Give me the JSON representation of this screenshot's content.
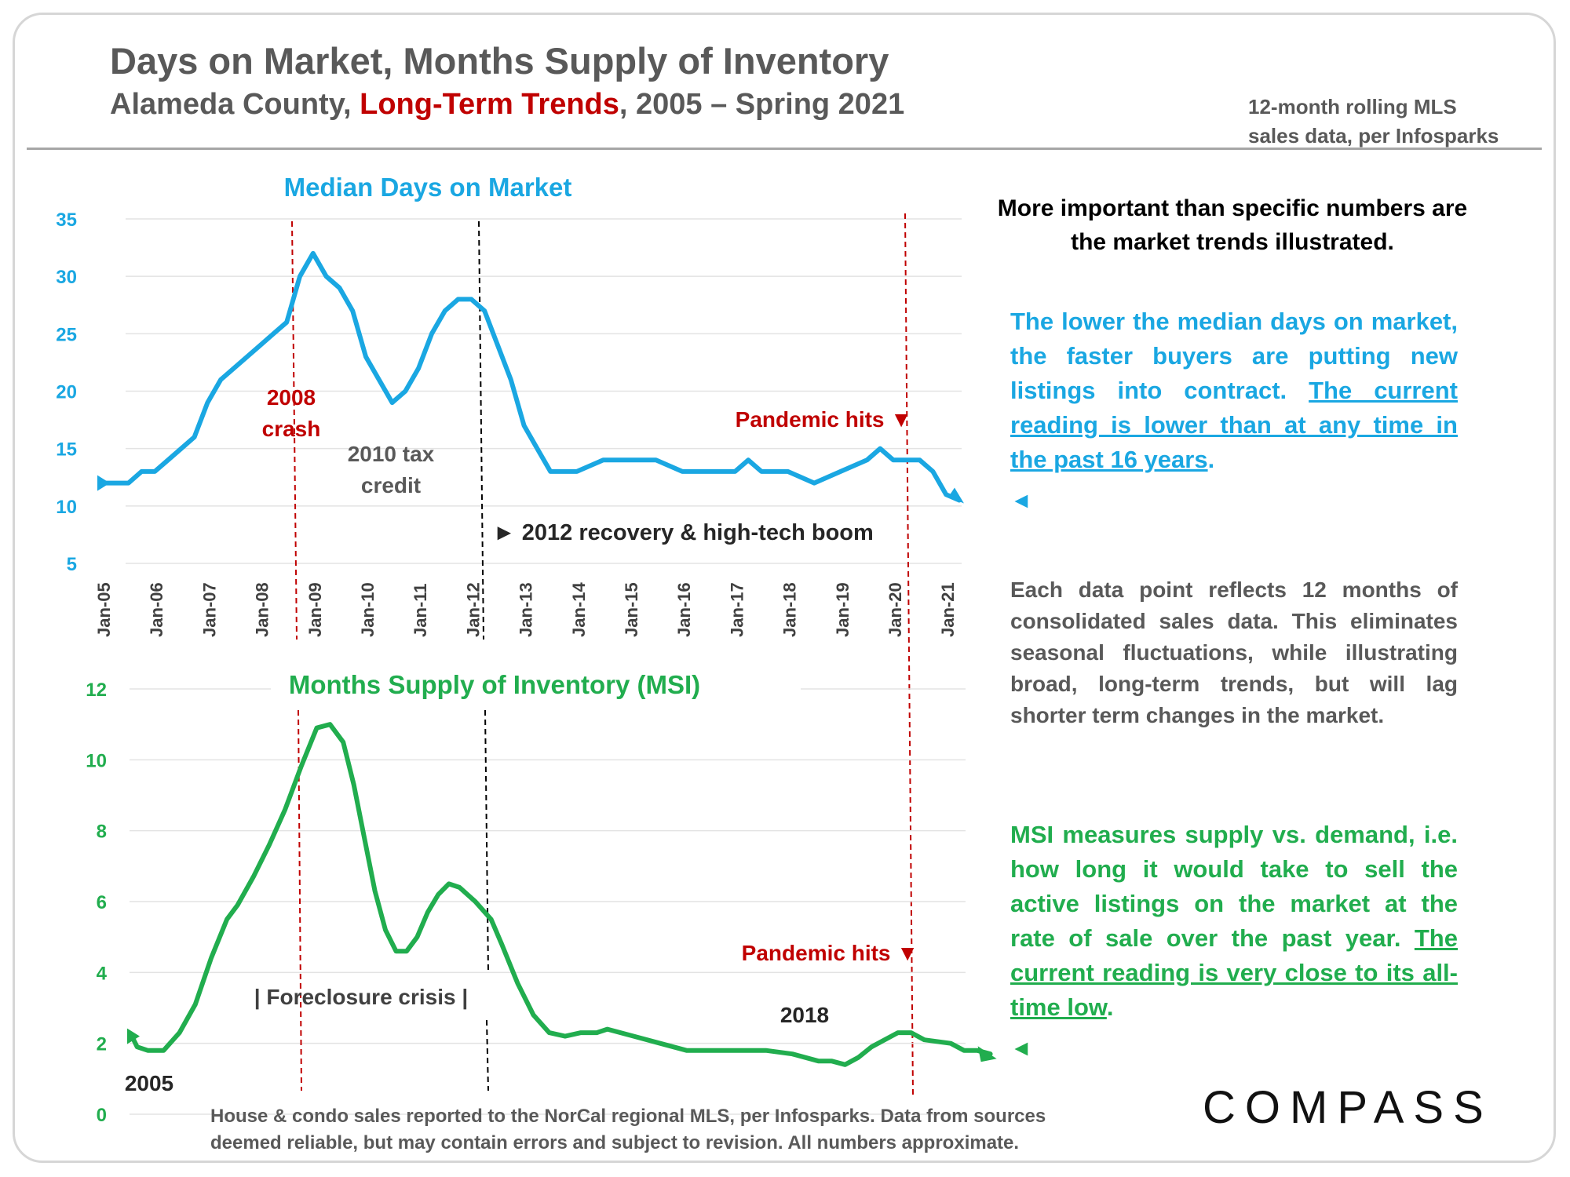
{
  "header": {
    "title": "Days on Market, Months Supply of Inventory",
    "subtitle_a": "Alameda County, ",
    "subtitle_red": "Long-Term Trends",
    "subtitle_b": ", 2005 – Spring 2021",
    "source_line1": "12-month rolling MLS",
    "source_line2": "sales data, per Infosparks"
  },
  "colors": {
    "dom": "#1aa7e2",
    "msi": "#21ad4e",
    "annotation_red": "#c00000",
    "text_gray": "#595959"
  },
  "chart_data": [
    {
      "type": "line",
      "title": "Median Days on Market",
      "xlabel": "",
      "ylabel": "",
      "ylim": [
        5,
        35
      ],
      "yticks": [
        "35",
        "30",
        "25",
        "20",
        "15",
        "10",
        "5"
      ],
      "xticks": [
        "Jan-05",
        "Jan-06",
        "Jan-07",
        "Jan-08",
        "Jan-09",
        "Jan-10",
        "Jan-11",
        "Jan-12",
        "Jan-13",
        "Jan-14",
        "Jan-15",
        "Jan-16",
        "Jan-17",
        "Jan-18",
        "Jan-19",
        "Jan-20",
        "Jan-21"
      ],
      "grid": true,
      "series": [
        {
          "x": [
            2005.0,
            2005.25,
            2005.5,
            2005.75,
            2006.0,
            2006.25,
            2006.5,
            2006.75,
            2007.0,
            2007.25,
            2007.5,
            2007.75,
            2008.0,
            2008.25,
            2008.5,
            2008.75,
            2009.0,
            2009.25,
            2009.5,
            2009.75,
            2010.0,
            2010.25,
            2010.5,
            2010.75,
            2011.0,
            2011.25,
            2011.5,
            2011.75,
            2012.0,
            2012.25,
            2012.5,
            2012.75,
            2013.0,
            2013.25,
            2013.5,
            2014.0,
            2014.5,
            2015.0,
            2015.5,
            2016.0,
            2016.5,
            2017.0,
            2017.25,
            2017.5,
            2018.0,
            2018.5,
            2019.0,
            2019.5,
            2019.75,
            2020.0,
            2020.5,
            2020.75,
            2021.0,
            2021.25
          ],
          "values": [
            12,
            12,
            12,
            13,
            13,
            14,
            15,
            16,
            19,
            21,
            22,
            23,
            24,
            25,
            26,
            30,
            32,
            30,
            29,
            27,
            23,
            21,
            19,
            20,
            22,
            25,
            27,
            28,
            28,
            27,
            24,
            21,
            17,
            15,
            13,
            13,
            14,
            14,
            14,
            13,
            13,
            13,
            14,
            13,
            13,
            12,
            13,
            14,
            15,
            14,
            14,
            13,
            11,
            10.5
          ]
        }
      ],
      "annotations": {
        "crash": "2008\ncrash",
        "tax_credit": "2010 tax\ncredit",
        "recovery": "► 2012 recovery & high-tech boom",
        "pandemic": "Pandemic hits ▼"
      }
    },
    {
      "type": "line",
      "title": "Months Supply of Inventory (MSI)",
      "xlabel": "",
      "ylabel": "",
      "ylim": [
        0,
        12
      ],
      "yticks": [
        "12",
        "10",
        "8",
        "6",
        "4",
        "2",
        "0"
      ],
      "grid": true,
      "series": [
        {
          "x": [
            2005.0,
            2005.1,
            2005.3,
            2005.6,
            2005.9,
            2006.2,
            2006.5,
            2006.8,
            2007.0,
            2007.3,
            2007.6,
            2007.9,
            2008.2,
            2008.5,
            2008.75,
            2009.0,
            2009.2,
            2009.4,
            2009.6,
            2009.8,
            2010.0,
            2010.2,
            2010.4,
            2010.6,
            2010.8,
            2011.0,
            2011.2,
            2011.5,
            2011.8,
            2012.0,
            2012.3,
            2012.6,
            2012.9,
            2013.2,
            2013.5,
            2013.8,
            2014.0,
            2014.5,
            2015.0,
            2015.5,
            2016.0,
            2016.5,
            2017.0,
            2017.5,
            2018.0,
            2018.25,
            2018.5,
            2018.75,
            2019.0,
            2019.5,
            2019.75,
            2020.0,
            2020.5,
            2020.75,
            2021.0,
            2021.25
          ],
          "values": [
            2.2,
            1.9,
            1.8,
            1.8,
            2.3,
            3.1,
            4.4,
            5.5,
            5.9,
            6.7,
            7.6,
            8.6,
            9.8,
            10.9,
            11.0,
            10.5,
            9.3,
            7.8,
            6.3,
            5.2,
            4.6,
            4.6,
            5.0,
            5.7,
            6.2,
            6.5,
            6.4,
            6.0,
            5.5,
            4.8,
            3.7,
            2.8,
            2.3,
            2.2,
            2.3,
            2.3,
            2.4,
            2.2,
            2.0,
            1.8,
            1.8,
            1.8,
            1.8,
            1.7,
            1.5,
            1.5,
            1.4,
            1.6,
            1.9,
            2.3,
            2.3,
            2.1,
            2.0,
            1.8,
            1.8,
            1.7
          ]
        }
      ],
      "annotations": {
        "foreclosure": "|   Foreclosure crisis   |",
        "pandemic": "Pandemic hits ▼",
        "year_2018": "2018",
        "year_2005": "2005"
      }
    }
  ],
  "panel": {
    "important": "More important than specific numbers are the market trends illustrated.",
    "dom_text": "The lower the median days on market, the faster buyers are putting new listings into contract. ",
    "dom_underlined": "The current reading is lower than at any time in the past 16 years",
    "dom_end": ".",
    "dom_arrow": "◄",
    "each_text": "Each data point reflects 12 months of consolidated sales data. This eliminates seasonal fluctuations, while illustrating broad, long-term trends, but will lag shorter term changes in the market.",
    "msi_text": "MSI measures supply vs. demand, i.e. how long it would take to sell the active listings on the market at the rate of sale over the past year. ",
    "msi_underlined": "The current reading is very close to its all-time low",
    "msi_end": ".",
    "msi_arrow": "◄"
  },
  "footnote": {
    "line1": "House & condo sales reported to the NorCal regional MLS, per Infosparks. Data from sources",
    "line2": "deemed reliable, but may contain errors and subject to revision. All numbers approximate."
  },
  "logo": "COMPASS"
}
